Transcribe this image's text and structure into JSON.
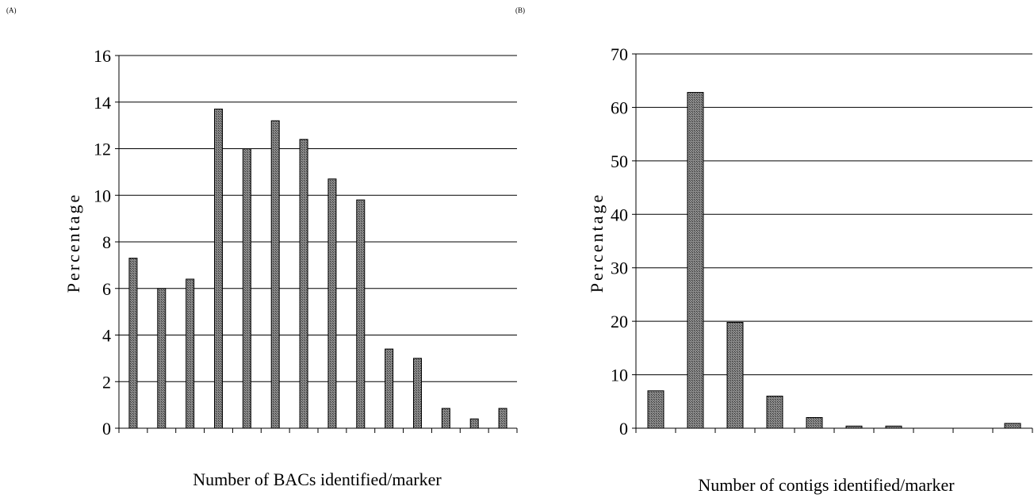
{
  "chart_data": [
    {
      "panel_label": "(A)",
      "type": "bar",
      "ylabel": "Percentage",
      "xlabel": "Number of BACs identified/marker",
      "ylim": [
        0,
        16
      ],
      "yticks": [
        0,
        2,
        4,
        6,
        8,
        10,
        12,
        14,
        16
      ],
      "grid": true,
      "values": [
        7.3,
        6.0,
        6.4,
        13.7,
        12.0,
        13.2,
        12.4,
        10.7,
        9.8,
        3.4,
        3.0,
        0.85,
        0.4,
        0.85
      ],
      "bar_color": "#6e6e6e"
    },
    {
      "panel_label": "(B)",
      "type": "bar",
      "ylabel": "Percentage",
      "xlabel": "Number of contigs identified/marker",
      "ylim": [
        0,
        70
      ],
      "yticks": [
        0,
        10,
        20,
        30,
        40,
        50,
        60,
        70
      ],
      "grid": true,
      "values": [
        7.0,
        62.8,
        19.8,
        6.0,
        2.0,
        0.4,
        0.4,
        0,
        0,
        0.9
      ],
      "bar_color": "#6e6e6e"
    }
  ]
}
